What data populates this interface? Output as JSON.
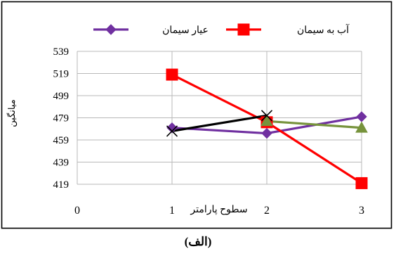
{
  "chart_data": {
    "type": "line",
    "x": [
      1,
      2,
      3
    ],
    "series": [
      {
        "name": "عیار سیمان",
        "values": [
          470,
          465,
          480
        ],
        "color": "#7030a0",
        "marker": "diamond"
      },
      {
        "name": "آب به سیمان",
        "values": [
          518,
          475,
          420
        ],
        "color": "#ff0000",
        "marker": "square"
      },
      {
        "name": "",
        "values": [
          null,
          476,
          470
        ],
        "color": "#77933c",
        "marker": "triangle"
      },
      {
        "name": "",
        "values": [
          467,
          481,
          null
        ],
        "color": "#000000",
        "marker": "x"
      }
    ],
    "xticks": [
      "0",
      "1",
      "2",
      "3"
    ],
    "yticks": [
      "539",
      "519",
      "499",
      "479",
      "459",
      "439",
      "419"
    ],
    "xlim": [
      0,
      3
    ],
    "ylim": [
      419,
      539
    ],
    "xlabel": "سطوح پارامتر",
    "ylabel": "میانگین",
    "grid": true,
    "legend_position": "top"
  },
  "caption": "(الف)"
}
